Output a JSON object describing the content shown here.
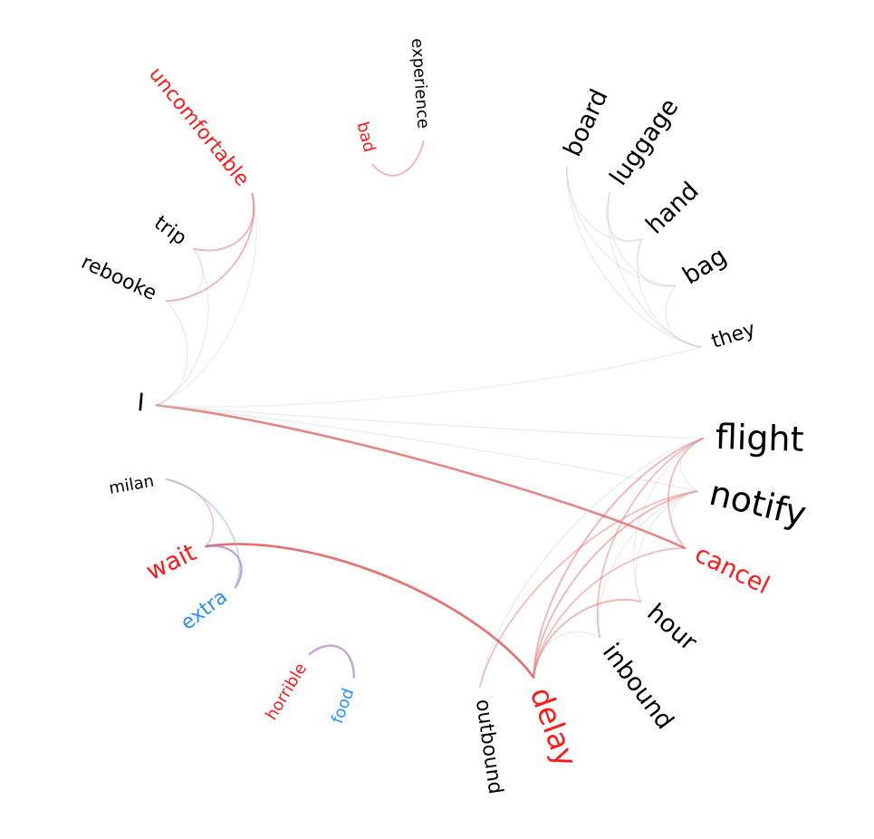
{
  "colors": {
    "negative": "#ff1a1a",
    "positive": "#2a8fff",
    "neutral": "#000000",
    "edge_red": "#e05a5a",
    "edge_gray": "#c8c8c8",
    "edge_purple": "#b57ac9",
    "edge_blue": "#9ab8d9"
  },
  "words": [
    {
      "id": "experience",
      "label": "experience",
      "sentiment": "neutral",
      "weight": 1
    },
    {
      "id": "bad",
      "label": "bad",
      "sentiment": "negative",
      "weight": 1
    },
    {
      "id": "uncomfortable",
      "label": "uncomfortable",
      "sentiment": "negative",
      "weight": 2
    },
    {
      "id": "trip",
      "label": "trip",
      "sentiment": "neutral",
      "weight": 2
    },
    {
      "id": "rebooke",
      "label": "rebooke",
      "sentiment": "neutral",
      "weight": 2
    },
    {
      "id": "I",
      "label": "I",
      "sentiment": "neutral",
      "weight": 3
    },
    {
      "id": "milan",
      "label": "milan",
      "sentiment": "neutral",
      "weight": 1
    },
    {
      "id": "wait",
      "label": "wait",
      "sentiment": "negative",
      "weight": 3
    },
    {
      "id": "extra",
      "label": "extra",
      "sentiment": "positive",
      "weight": 2
    },
    {
      "id": "horrible",
      "label": "horrible",
      "sentiment": "negative",
      "weight": 1
    },
    {
      "id": "food",
      "label": "food",
      "sentiment": "positive",
      "weight": 1
    },
    {
      "id": "outbound",
      "label": "outbound",
      "sentiment": "neutral",
      "weight": 2
    },
    {
      "id": "delay",
      "label": "delay",
      "sentiment": "negative",
      "weight": 4
    },
    {
      "id": "inbound",
      "label": "inbound",
      "sentiment": "neutral",
      "weight": 3
    },
    {
      "id": "hour",
      "label": "hour",
      "sentiment": "neutral",
      "weight": 3
    },
    {
      "id": "cancel",
      "label": "cancel",
      "sentiment": "negative",
      "weight": 3
    },
    {
      "id": "notify",
      "label": "notify",
      "sentiment": "neutral",
      "weight": 5
    },
    {
      "id": "flight",
      "label": "flight",
      "sentiment": "neutral",
      "weight": 5
    },
    {
      "id": "they",
      "label": "they",
      "sentiment": "neutral",
      "weight": 2
    },
    {
      "id": "bag",
      "label": "bag",
      "sentiment": "neutral",
      "weight": 3
    },
    {
      "id": "hand",
      "label": "hand",
      "sentiment": "neutral",
      "weight": 3
    },
    {
      "id": "luggage",
      "label": "luggage",
      "sentiment": "neutral",
      "weight": 3
    },
    {
      "id": "board",
      "label": "board",
      "sentiment": "neutral",
      "weight": 3
    }
  ],
  "edges": [
    {
      "source": "bad",
      "target": "experience",
      "color": "edge_red",
      "strength": 0.45
    },
    {
      "source": "uncomfortable",
      "target": "trip",
      "color": "edge_red",
      "strength": 0.45
    },
    {
      "source": "uncomfortable",
      "target": "rebooke",
      "color": "edge_red",
      "strength": 0.45
    },
    {
      "source": "trip",
      "target": "rebooke",
      "color": "edge_gray",
      "strength": 0.3
    },
    {
      "source": "I",
      "target": "trip",
      "color": "edge_gray",
      "strength": 0.3
    },
    {
      "source": "I",
      "target": "rebooke",
      "color": "edge_gray",
      "strength": 0.3
    },
    {
      "source": "I",
      "target": "uncomfortable",
      "color": "edge_gray",
      "strength": 0.25
    },
    {
      "source": "I",
      "target": "cancel",
      "color": "edge_red",
      "strength": 0.75
    },
    {
      "source": "I",
      "target": "flight",
      "color": "edge_gray",
      "strength": 0.3
    },
    {
      "source": "I",
      "target": "notify",
      "color": "edge_gray",
      "strength": 0.3
    },
    {
      "source": "I",
      "target": "they",
      "color": "edge_gray",
      "strength": 0.25
    },
    {
      "source": "wait",
      "target": "delay",
      "color": "edge_red",
      "strength": 0.85
    },
    {
      "source": "wait",
      "target": "milan",
      "color": "edge_red",
      "strength": 0.35
    },
    {
      "source": "wait",
      "target": "extra",
      "color": "edge_purple",
      "strength": 0.7
    },
    {
      "source": "milan",
      "target": "extra",
      "color": "edge_blue",
      "strength": 0.5
    },
    {
      "source": "horrible",
      "target": "food",
      "color": "edge_purple",
      "strength": 0.7
    },
    {
      "source": "delay",
      "target": "flight",
      "color": "edge_red",
      "strength": 0.45
    },
    {
      "source": "delay",
      "target": "notify",
      "color": "edge_red",
      "strength": 0.45
    },
    {
      "source": "delay",
      "target": "hour",
      "color": "edge_red",
      "strength": 0.45
    },
    {
      "source": "delay",
      "target": "cancel",
      "color": "edge_red",
      "strength": 0.4
    },
    {
      "source": "delay",
      "target": "inbound",
      "color": "edge_gray",
      "strength": 0.3
    },
    {
      "source": "outbound",
      "target": "notify",
      "color": "edge_red",
      "strength": 0.4
    },
    {
      "source": "outbound",
      "target": "flight",
      "color": "edge_gray",
      "strength": 0.3
    },
    {
      "source": "inbound",
      "target": "flight",
      "color": "edge_red",
      "strength": 0.4
    },
    {
      "source": "inbound",
      "target": "notify",
      "color": "edge_gray",
      "strength": 0.3
    },
    {
      "source": "hour",
      "target": "flight",
      "color": "edge_gray",
      "strength": 0.3
    },
    {
      "source": "hour",
      "target": "notify",
      "color": "edge_gray",
      "strength": 0.3
    },
    {
      "source": "cancel",
      "target": "flight",
      "color": "edge_red",
      "strength": 0.4
    },
    {
      "source": "cancel",
      "target": "notify",
      "color": "edge_gray",
      "strength": 0.3
    },
    {
      "source": "flight",
      "target": "notify",
      "color": "edge_gray",
      "strength": 0.3
    },
    {
      "source": "board",
      "target": "they",
      "color": "edge_gray",
      "strength": 0.3
    },
    {
      "source": "board",
      "target": "bag",
      "color": "edge_gray",
      "strength": 0.3
    },
    {
      "source": "board",
      "target": "hand",
      "color": "edge_gray",
      "strength": 0.3
    },
    {
      "source": "luggage",
      "target": "they",
      "color": "edge_gray",
      "strength": 0.3
    },
    {
      "source": "luggage",
      "target": "bag",
      "color": "edge_gray",
      "strength": 0.3
    },
    {
      "source": "luggage",
      "target": "hand",
      "color": "edge_gray",
      "strength": 0.3
    },
    {
      "source": "hand",
      "target": "they",
      "color": "edge_gray",
      "strength": 0.3
    },
    {
      "source": "hand",
      "target": "bag",
      "color": "edge_gray",
      "strength": 0.3
    },
    {
      "source": "bag",
      "target": "they",
      "color": "edge_gray",
      "strength": 0.3
    }
  ]
}
